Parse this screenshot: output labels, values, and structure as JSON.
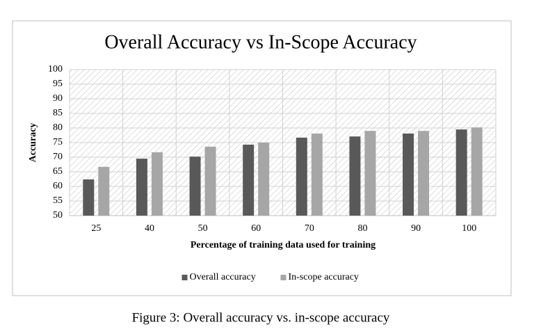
{
  "chart_data": {
    "type": "bar",
    "title": "Overall Accuracy vs In-Scope Accuracy",
    "x_label": "Percentage of training data used for training",
    "y_label": "Accuracy",
    "categories": [
      "25",
      "40",
      "50",
      "60",
      "70",
      "80",
      "90",
      "100"
    ],
    "series": [
      {
        "name": "Overall accuracy",
        "color": "#595959",
        "values": [
          62.4,
          69.5,
          70.2,
          74.3,
          76.7,
          77.1,
          78.1,
          79.5
        ]
      },
      {
        "name": "In-scope accuracy",
        "color": "#a6a6a6",
        "values": [
          66.7,
          71.7,
          73.6,
          75.0,
          78.1,
          79.0,
          79.0,
          80.2
        ]
      }
    ],
    "ylim": [
      50,
      100
    ],
    "yticks": [
      50,
      55,
      60,
      65,
      70,
      75,
      80,
      85,
      90,
      95,
      100
    ],
    "grid": true,
    "legend": "bottom",
    "caption": "Figure 3: Overall accuracy vs. in-scope accuracy"
  }
}
